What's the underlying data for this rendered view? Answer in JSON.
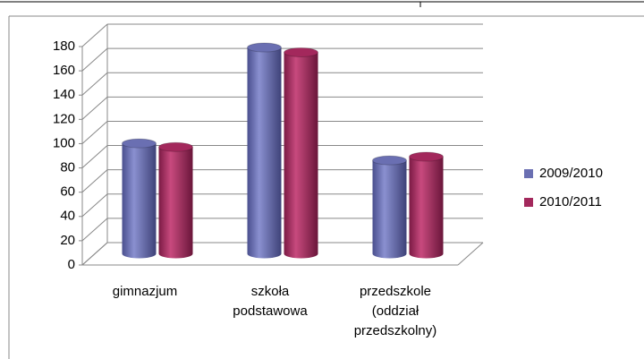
{
  "chart_data": {
    "type": "bar3d",
    "categories": [
      "gimnazjum",
      "szkoła\npodstawowa",
      "przedszkole\n(oddział\nprzedszkolny)"
    ],
    "series": [
      {
        "name": "2009/2010",
        "color": "#6a6fb2",
        "values": [
          91,
          170,
          77
        ]
      },
      {
        "name": "2010/2011",
        "color": "#a3285c",
        "values": [
          88,
          166,
          80
        ]
      }
    ],
    "ylim": [
      0,
      180
    ],
    "yticks": [
      0,
      20,
      40,
      60,
      80,
      100,
      120,
      140,
      160,
      180
    ],
    "grid": true,
    "legend": "right"
  }
}
